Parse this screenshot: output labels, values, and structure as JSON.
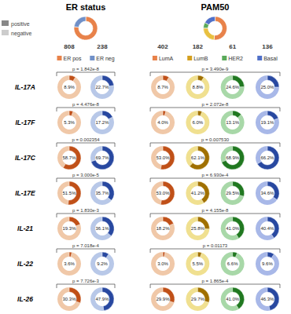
{
  "chart_data": [
    {
      "type": "donut",
      "title": "ER status",
      "values": [
        0.772,
        0.228
      ],
      "colors": [
        "#E8824A",
        "#7090C8"
      ],
      "ylim": [
        0,
        100
      ],
      "data_labels": true,
      "rows": [
        "IL-17A",
        "IL-17F",
        "IL-17C",
        "IL-17E",
        "IL-21",
        "IL-22",
        "IL-26"
      ],
      "legend_labels": [
        "positive",
        "negative"
      ],
      "legend_colors": [
        "#888888",
        "#cccccc"
      ],
      "p_values": [
        "p = 1.842e-8",
        "p = 4.476e-8",
        "p = 0.002354",
        "p = 3.000e-5",
        "p = 1.830e-3",
        "p = 7.018e-4",
        "p = 7.726e-3"
      ],
      "series": [
        {
          "name": "ER pos",
          "color": "#E8824A",
          "colors": [
            "#C05018",
            "#F0C8A8"
          ],
          "count": 808,
          "values": [
            8.9,
            5.3,
            58.7,
            51.5,
            19.3,
            3.6,
            30.3
          ],
          "value_labels": [
            "8.9%",
            "5.3%",
            "58.7%",
            "51.5%",
            "19.3%",
            "3.6%",
            "30.3%"
          ]
        },
        {
          "name": "ER neg",
          "color": "#7090C8",
          "colors": [
            "#2848A0",
            "#B8C8E8"
          ],
          "count": 238,
          "values": [
            22.7,
            17.2,
            69.7,
            35.7,
            36.1,
            9.2,
            47.9
          ],
          "value_labels": [
            "22.7%",
            "17.2%",
            "69.7%",
            "35.7%",
            "36.1%",
            "9.2%",
            "47.9%"
          ]
        }
      ]
    },
    {
      "type": "donut",
      "title": "PAM50",
      "values": [
        0.52,
        0.24,
        0.08,
        0.17
      ],
      "colors": [
        "#E8824A",
        "#E8C040",
        "#5AAA5A",
        "#5070C8"
      ],
      "ylim": [
        0,
        100
      ],
      "data_labels": true,
      "p_values": [
        "p = 3.490e-9",
        "p = 2.072e-8",
        "p = 0.007530",
        "p = 6.930e-4",
        "p = 4.155e-8",
        "p = 0.01173",
        "p = 1.865e-4"
      ],
      "series": [
        {
          "name": "LumA",
          "color": "#E8824A",
          "colors": [
            "#C05018",
            "#F0C8A8"
          ],
          "count": 402,
          "values": [
            8.7,
            4.0,
            53.0,
            53.0,
            18.2,
            3.0,
            29.9
          ],
          "value_labels": [
            "8.7%",
            "4.0%",
            "53.0%",
            "53.0%",
            "18.2%",
            "3.0%",
            "29.9%"
          ]
        },
        {
          "name": "LumB",
          "color": "#D4A020",
          "colors": [
            "#A07000",
            "#F0E090"
          ],
          "count": 182,
          "values": [
            8.8,
            6.0,
            62.1,
            41.2,
            25.8,
            5.5,
            29.7
          ],
          "value_labels": [
            "8.8%",
            "6.0%",
            "62.1%",
            "41.2%",
            "25.8%",
            "5.5%",
            "29.7%"
          ]
        },
        {
          "name": "HER2",
          "color": "#5AAA5A",
          "colors": [
            "#207820",
            "#A8D8A8"
          ],
          "count": 61,
          "values": [
            24.6,
            13.1,
            68.9,
            29.5,
            41.0,
            6.6,
            41.0
          ],
          "value_labels": [
            "24.6%",
            "13.1%",
            "68.9%",
            "29.5%",
            "41.0%",
            "6.6%",
            "41.0%"
          ]
        },
        {
          "name": "Basal",
          "color": "#5070C8",
          "colors": [
            "#2848A0",
            "#A8B8E8"
          ],
          "count": 136,
          "values": [
            25.0,
            19.1,
            66.2,
            34.6,
            40.4,
            9.6,
            46.3
          ],
          "value_labels": [
            "25.0%",
            "19.1%",
            "66.2%",
            "34.6%",
            "40.4%",
            "9.6%",
            "46.3%"
          ]
        }
      ]
    }
  ]
}
